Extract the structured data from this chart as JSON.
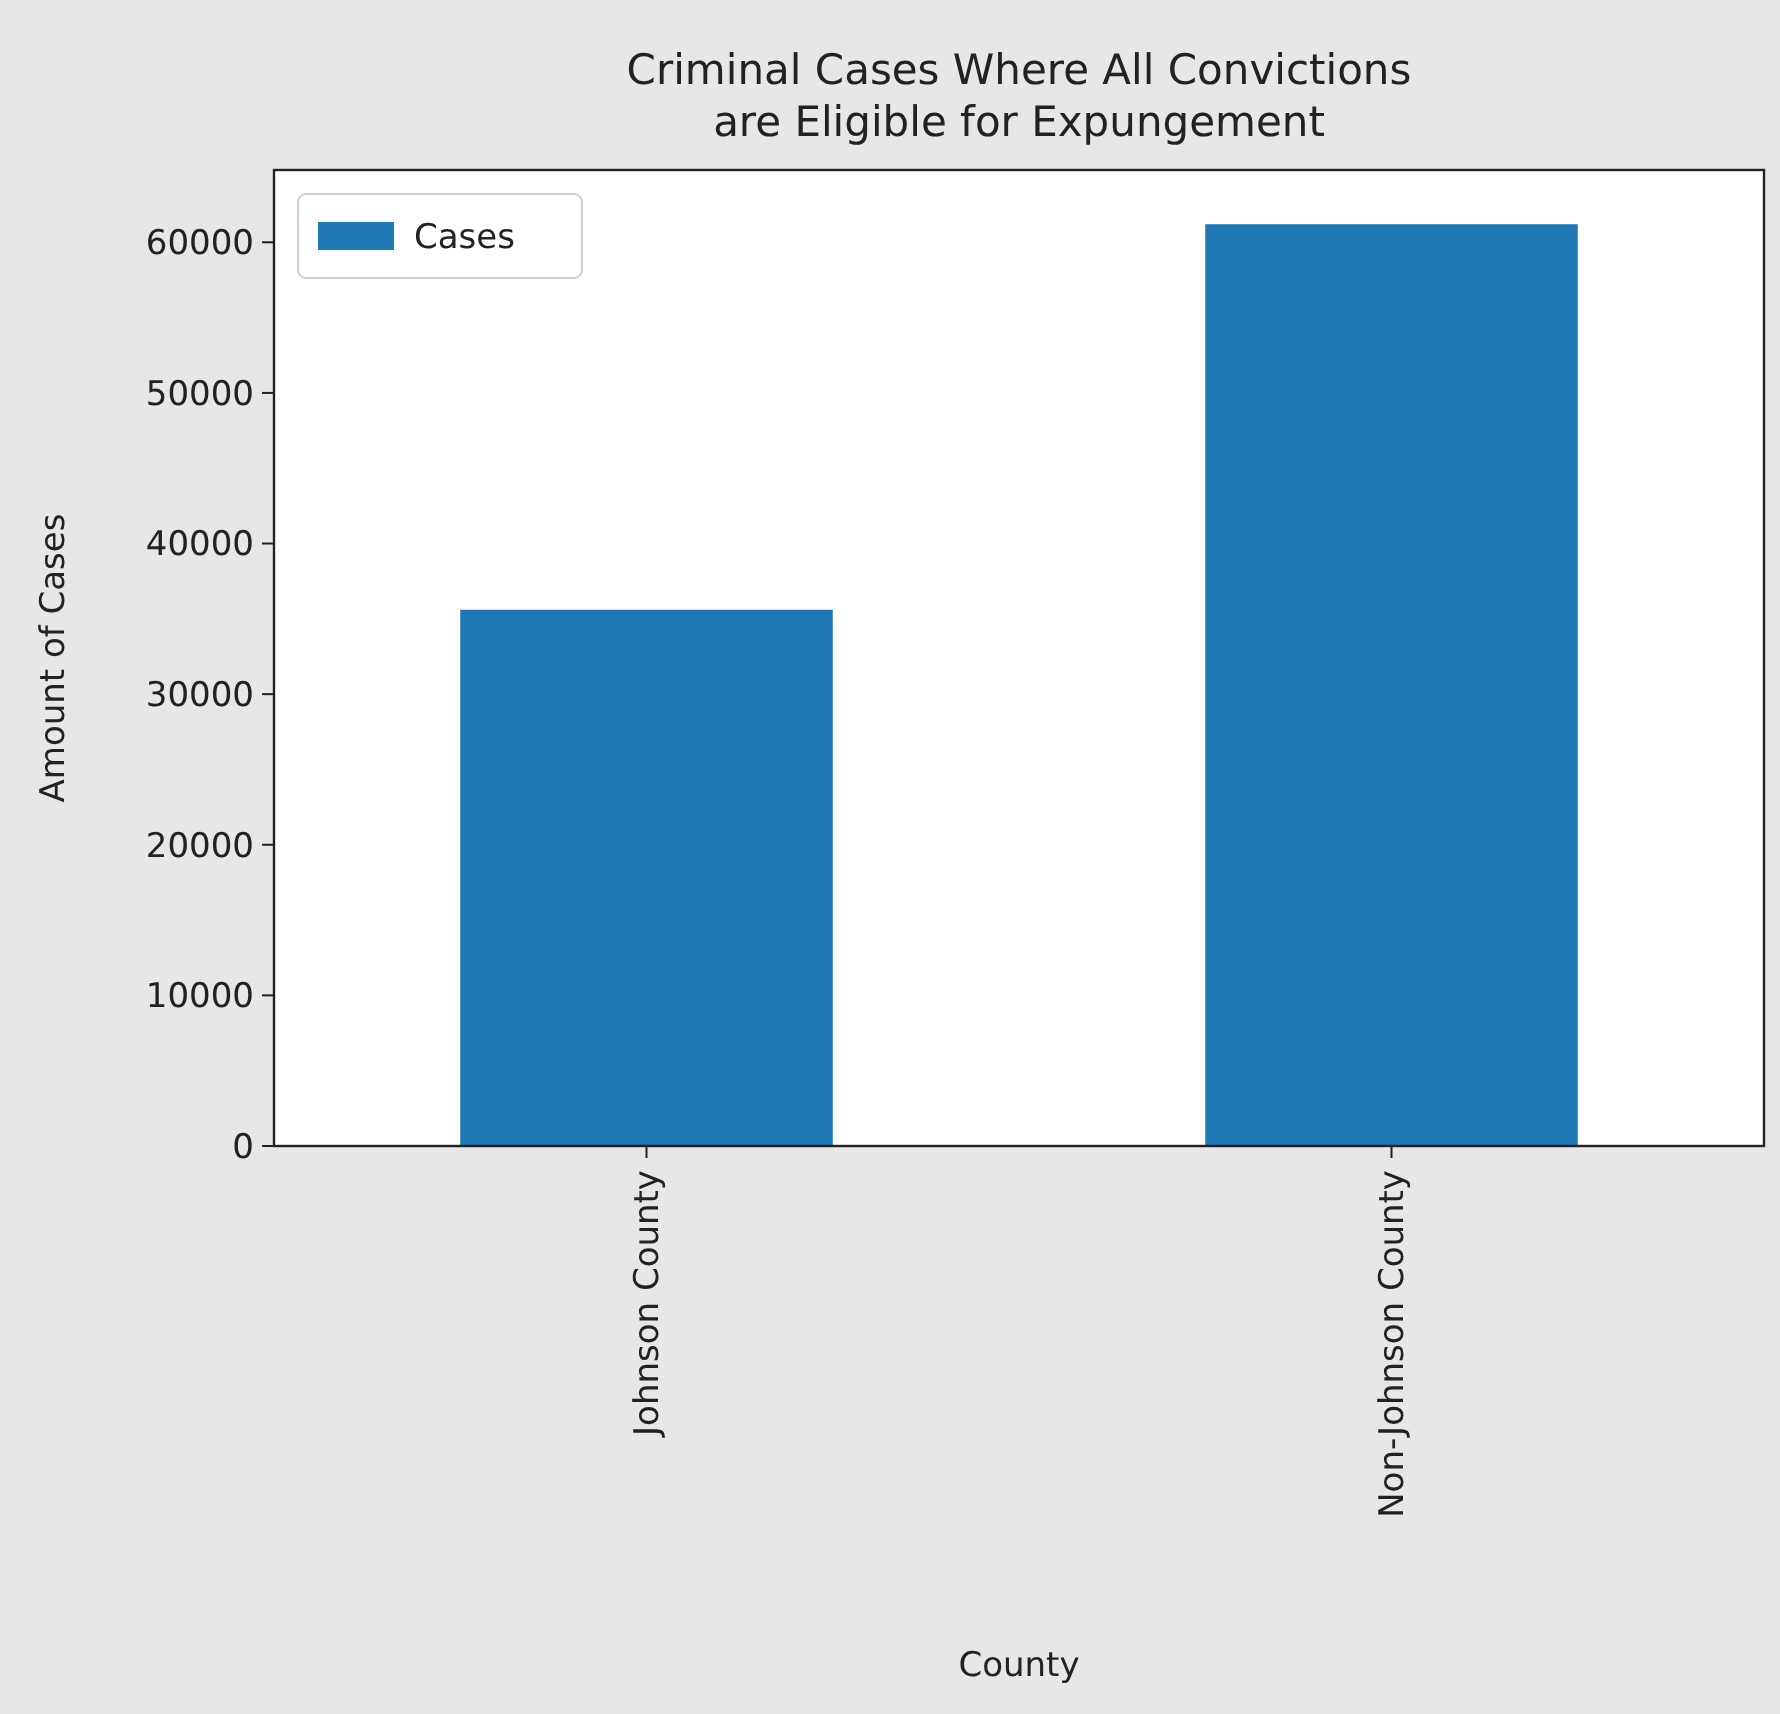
{
  "chart_data": {
    "type": "bar",
    "title": "Criminal Cases Where All Convictions\nare Eligible for Expungement",
    "xlabel": "County",
    "ylabel": "Amount of Cases",
    "categories": [
      "Johnson County",
      "Non-Johnson County"
    ],
    "series": [
      {
        "name": "Cases",
        "color": "#1f77b4",
        "values": [
          35600,
          61200
        ]
      }
    ],
    "ylim": [
      0,
      64800
    ],
    "yticks": [
      0,
      10000,
      20000,
      30000,
      40000,
      50000,
      60000
    ],
    "legend": "top left"
  }
}
